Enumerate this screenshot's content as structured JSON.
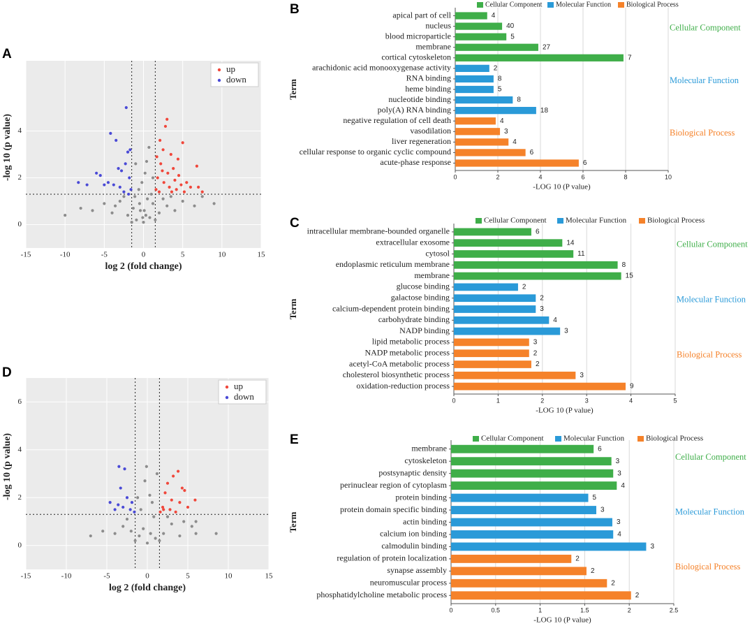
{
  "chart_data": [
    {
      "type": "scatter",
      "label": "A",
      "xlabel": "log 2 (fold change)",
      "ylabel": "-log 10 (p value)",
      "xlim": [
        -15,
        15
      ],
      "xticks": [
        -15,
        -10,
        -5,
        0,
        5,
        10,
        15
      ],
      "ylim": [
        -1,
        7
      ],
      "yticks": [
        0,
        2,
        4
      ],
      "vlines": [
        -1.5,
        1.5
      ],
      "hline": 1.3,
      "grid": true,
      "legend": "upper right",
      "series": [
        {
          "color": "#8c8c8c",
          "x": [
            0,
            0.3,
            -0.4,
            0.8,
            -0.9,
            1.2,
            -1.3,
            0.5,
            -0.6,
            0.2,
            -0.2,
            1.0,
            -1.0,
            0.7,
            -0.5,
            2.0,
            -2.0,
            3.0,
            -3.0,
            4.0,
            -4.0,
            5.0,
            -5.0,
            6.5,
            -6.5,
            9.0,
            -10.0,
            2.5,
            -2.5,
            1.5,
            -1.5,
            0.1,
            -0.1,
            3.5,
            -3.6,
            7.5,
            -8.0,
            1.2,
            -1.1,
            0.4
          ],
          "values": [
            0.1,
            0.4,
            0.6,
            0.3,
            0.2,
            0.9,
            0.7,
            1.1,
            1.5,
            2.2,
            1.8,
            1.3,
            2.6,
            3.3,
            0.9,
            0.5,
            0.4,
            0.8,
            1.0,
            0.6,
            0.5,
            1.0,
            0.9,
            0.8,
            0.6,
            0.9,
            0.4,
            1.1,
            1.2,
            0.2,
            0.1,
            0.6,
            0.3,
            1.2,
            0.8,
            1.2,
            0.7,
            2.0,
            1.2,
            2.7
          ]
        },
        {
          "name": "up",
          "color": "#f0473b",
          "x": [
            1.6,
            1.8,
            2.0,
            2.2,
            2.5,
            2.6,
            2.8,
            3.0,
            3.1,
            3.3,
            3.5,
            3.8,
            4.0,
            4.2,
            4.5,
            4.8,
            5.0,
            5.5,
            6.0,
            6.8,
            7.0,
            7.5,
            2.1,
            1.7,
            3.6,
            2.4,
            4.4,
            5.2
          ],
          "values": [
            1.5,
            2.0,
            1.4,
            2.6,
            3.2,
            1.8,
            4.2,
            4.5,
            2.2,
            1.6,
            3.0,
            2.4,
            1.9,
            1.5,
            2.1,
            1.7,
            3.5,
            1.8,
            1.6,
            2.5,
            1.6,
            1.4,
            3.6,
            2.9,
            1.4,
            2.3,
            2.8,
            1.4
          ]
        },
        {
          "name": "down",
          "color": "#4a4ad6",
          "x": [
            -1.6,
            -1.8,
            -2.0,
            -2.2,
            -2.5,
            -2.8,
            -3.0,
            -3.2,
            -3.5,
            -3.8,
            -4.2,
            -4.5,
            -5.0,
            -5.5,
            -6.0,
            -7.2,
            -8.3,
            -1.7,
            -2.3,
            -1.9
          ],
          "values": [
            1.5,
            2.0,
            3.1,
            5.0,
            1.4,
            2.3,
            1.6,
            2.4,
            3.6,
            1.7,
            3.9,
            1.8,
            1.7,
            2.1,
            2.2,
            1.7,
            1.8,
            3.2,
            2.6,
            1.3
          ]
        }
      ]
    },
    {
      "type": "bar",
      "label": "B",
      "xlabel": "-LOG 10 (P value)",
      "ylabel": "Term",
      "xlim": [
        0,
        10
      ],
      "xticks": [
        0,
        2,
        4,
        6,
        8,
        10
      ],
      "grid": true,
      "series": [
        {
          "name": "Cellular Component",
          "color": "#3fae49",
          "categories": [
            "apical part of cell",
            "nucleus",
            "blood microparticle",
            "membrane",
            "cortical cytoskeleton"
          ],
          "values": [
            1.5,
            2.2,
            2.4,
            3.9,
            7.9
          ],
          "counts": [
            4,
            40,
            5,
            27,
            7
          ]
        },
        {
          "name": "Molecular Function",
          "color": "#2a9ad8",
          "categories": [
            "arachidonic acid monooxygenase activity",
            "RNA binding",
            "heme binding",
            "nucleotide binding",
            "poly(A) RNA binding"
          ],
          "values": [
            1.6,
            1.8,
            1.8,
            2.7,
            3.8
          ],
          "counts": [
            2,
            8,
            5,
            8,
            18
          ]
        },
        {
          "name": "Biological Process",
          "color": "#f5822a",
          "categories": [
            "negative regulation of cell death",
            "vasodilation",
            "liver regeneration",
            "cellular response to organic cyclic compound",
            "acute-phase response"
          ],
          "values": [
            1.9,
            2.1,
            2.5,
            3.3,
            5.8
          ],
          "counts": [
            4,
            3,
            4,
            6,
            6
          ]
        }
      ]
    },
    {
      "type": "bar",
      "label": "C",
      "xlabel": "-LOG 10 (P value)",
      "ylabel": "Term",
      "xlim": [
        0,
        5
      ],
      "xticks": [
        0,
        1,
        2,
        3,
        4,
        5
      ],
      "grid": true,
      "series": [
        {
          "name": "Cellular Component",
          "color": "#3fae49",
          "categories": [
            "intracellular membrane-bounded organelle",
            "extracellular exosome",
            "cytosol",
            "endoplasmic reticulum membrane",
            "membrane"
          ],
          "values": [
            1.75,
            2.45,
            2.7,
            3.7,
            3.78
          ],
          "counts": [
            6,
            14,
            11,
            8,
            15
          ]
        },
        {
          "name": "Molecular Function",
          "color": "#2a9ad8",
          "categories": [
            "glucose binding",
            "galactose binding",
            "calcium-dependent protein binding",
            "carbohydrate binding",
            "NADP binding"
          ],
          "values": [
            1.45,
            1.85,
            1.85,
            2.15,
            2.4
          ],
          "counts": [
            2,
            2,
            3,
            4,
            3
          ]
        },
        {
          "name": "Biological Process",
          "color": "#f5822a",
          "categories": [
            "lipid metabolic process",
            "NADP metabolic process",
            "acetyl-CoA metabolic process",
            "cholesterol biosynthetic process",
            "oxidation-reduction process"
          ],
          "values": [
            1.7,
            1.7,
            1.75,
            2.75,
            3.88
          ],
          "counts": [
            3,
            2,
            2,
            3,
            9
          ]
        }
      ]
    },
    {
      "type": "scatter",
      "label": "D",
      "xlabel": "log 2 (fold change)",
      "ylabel": "-log 10 (p value)",
      "xlim": [
        -15,
        15
      ],
      "xticks": [
        -15,
        -10,
        -5,
        0,
        5,
        10,
        15
      ],
      "ylim": [
        -1,
        7
      ],
      "yticks": [
        0,
        2,
        4,
        6
      ],
      "vlines": [
        -1.5,
        1.5
      ],
      "hline": 1.3,
      "grid": true,
      "legend": "upper right",
      "series": [
        {
          "color": "#8c8c8c",
          "x": [
            0,
            0.4,
            -0.5,
            1.0,
            -1.0,
            0.8,
            -0.8,
            0.3,
            -0.3,
            1.2,
            -0.1,
            2.0,
            -2.0,
            3.0,
            -3.0,
            4.0,
            -4.0,
            5.5,
            -5.5,
            6.0,
            -7.0,
            8.5,
            6.0,
            2.5,
            -2.5,
            1.5,
            -1.5,
            0.6,
            -1.2,
            4.5
          ],
          "values": [
            0.1,
            0.5,
            0.7,
            0.3,
            0.4,
            1.2,
            1.5,
            2.1,
            2.7,
            3.0,
            3.3,
            0.5,
            0.6,
            0.9,
            0.8,
            0.4,
            0.5,
            0.8,
            0.6,
            0.5,
            0.4,
            0.5,
            1.0,
            1.2,
            1.1,
            0.2,
            0.2,
            1.8,
            2.0,
            1.0
          ]
        },
        {
          "name": "up",
          "color": "#f0473b",
          "x": [
            1.6,
            1.9,
            2.2,
            2.5,
            2.8,
            3.0,
            3.2,
            3.5,
            3.8,
            4.0,
            4.3,
            4.6,
            5.0,
            5.9,
            2.0
          ],
          "values": [
            1.4,
            1.6,
            2.2,
            2.6,
            1.5,
            1.9,
            2.9,
            1.4,
            3.1,
            1.8,
            2.4,
            2.3,
            1.6,
            1.9,
            1.5
          ]
        },
        {
          "name": "down",
          "color": "#4a4ad6",
          "x": [
            -1.6,
            -1.9,
            -2.1,
            -2.5,
            -2.8,
            -3.0,
            -3.3,
            -3.6,
            -4.0,
            -4.6,
            -3.5
          ],
          "values": [
            1.4,
            1.8,
            1.5,
            2.0,
            3.2,
            1.6,
            2.4,
            1.7,
            1.5,
            1.8,
            3.3
          ]
        }
      ]
    },
    {
      "type": "bar",
      "label": "E",
      "xlabel": "-LOG 10 (P value)",
      "ylabel": "Term",
      "xlim": [
        0,
        2.5
      ],
      "xticks": [
        0,
        0.5,
        1,
        1.5,
        2,
        2.5
      ],
      "grid": true,
      "series": [
        {
          "name": "Cellular Component",
          "color": "#3fae49",
          "categories": [
            "membrane",
            "cytoskeleton",
            "postsynaptic density",
            "perinuclear region of cytoplasm"
          ],
          "values": [
            1.6,
            1.8,
            1.82,
            1.86
          ],
          "counts": [
            6,
            3,
            3,
            4
          ]
        },
        {
          "name": "Molecular Function",
          "color": "#2a9ad8",
          "categories": [
            "protein binding",
            "protein domain specific binding",
            "actin binding",
            "calcium ion binding",
            "calmodulin binding"
          ],
          "values": [
            1.54,
            1.63,
            1.81,
            1.82,
            2.19
          ],
          "counts": [
            5,
            3,
            3,
            4,
            3
          ]
        },
        {
          "name": "Biological Process",
          "color": "#f5822a",
          "categories": [
            "regulation of protein localization",
            "synapse assembly",
            "neuromuscular process",
            "phosphatidylcholine metabolic process"
          ],
          "values": [
            1.35,
            1.52,
            1.75,
            2.02
          ],
          "counts": [
            2,
            2,
            2,
            2
          ]
        }
      ]
    }
  ]
}
